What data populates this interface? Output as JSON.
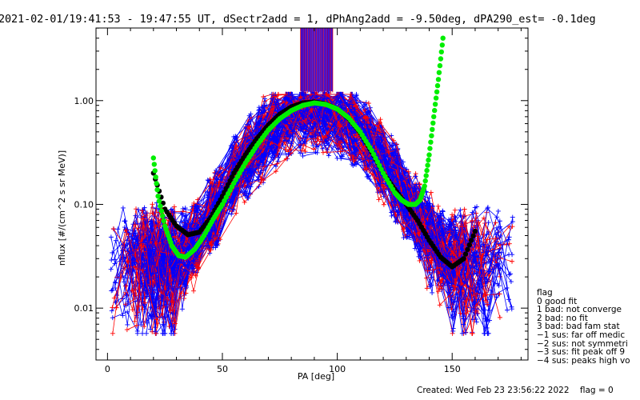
{
  "header": {
    "title": "2021-02-01/19:41:53 - 19:47:55 UT, dSectr2add = 1, dPhAng2add = -9.50deg, dPA290_est=  -0.1deg"
  },
  "chart_data": {
    "type": "scatter",
    "xlabel": "PA [deg]",
    "ylabel": "nflux [#/(cm^2 s sr MeV)]",
    "xlim": [
      -5,
      183
    ],
    "ylim_log10": [
      -2.5,
      0.7
    ],
    "x_ticks": [
      0,
      50,
      100,
      150
    ],
    "x_tick_labels": [
      "0",
      "50",
      "100",
      "150"
    ],
    "y_ticks": [
      1.0,
      0.1,
      0.01
    ],
    "y_tick_labels": [
      "1.00",
      "0.10",
      "0.01"
    ],
    "y_scale": "log",
    "grid": false,
    "colors": {
      "red_traces": "#ff0000",
      "blue_traces": "#0000ff",
      "fit_black": "#000000",
      "fit_green": "#00ee00"
    },
    "series": [
      {
        "color": "#000000",
        "style": "thick-dots",
        "x": [
          20,
          25,
          30,
          35,
          40,
          45,
          50,
          55,
          60,
          65,
          70,
          75,
          80,
          85,
          90,
          95,
          100,
          105,
          110,
          115,
          120,
          125,
          130,
          135,
          140,
          145,
          150,
          155,
          160
        ],
        "y": [
          0.2,
          0.09,
          0.062,
          0.051,
          0.054,
          0.075,
          0.12,
          0.2,
          0.3,
          0.43,
          0.58,
          0.74,
          0.87,
          0.95,
          0.97,
          0.93,
          0.83,
          0.67,
          0.49,
          0.32,
          0.2,
          0.14,
          0.1,
          0.07,
          0.045,
          0.031,
          0.025,
          0.03,
          0.055
        ]
      },
      {
        "color": "#00ee00",
        "style": "thick-dots",
        "x": [
          20,
          22,
          25,
          28,
          31,
          34,
          38,
          42,
          46,
          50,
          55,
          60,
          65,
          70,
          75,
          80,
          85,
          90,
          95,
          100,
          105,
          110,
          115,
          120,
          125,
          128,
          131,
          134,
          136,
          138,
          140,
          142,
          144,
          146
        ],
        "y": [
          0.28,
          0.12,
          0.062,
          0.04,
          0.032,
          0.031,
          0.037,
          0.05,
          0.072,
          0.1,
          0.16,
          0.25,
          0.37,
          0.52,
          0.67,
          0.8,
          0.9,
          0.95,
          0.92,
          0.83,
          0.68,
          0.5,
          0.33,
          0.2,
          0.13,
          0.11,
          0.1,
          0.1,
          0.11,
          0.15,
          0.3,
          0.7,
          1.6,
          4.0
        ]
      }
    ],
    "vertical_lines_region_x": [
      84,
      98
    ]
  },
  "legend": {
    "title": "flag",
    "items": [
      " 0 good fit",
      " 1 bad: not converge",
      " 2 bad: no fit",
      " 3 bad: bad fam stat",
      "−1 sus: far off medic",
      "−2 sus: not symmetri",
      "−3 sus: fit peak off 9",
      "−4 sus: peaks high vo"
    ]
  },
  "footer": {
    "created": "Created: Wed Feb 23 23:56:22 2022",
    "flag": "flag = 0"
  }
}
